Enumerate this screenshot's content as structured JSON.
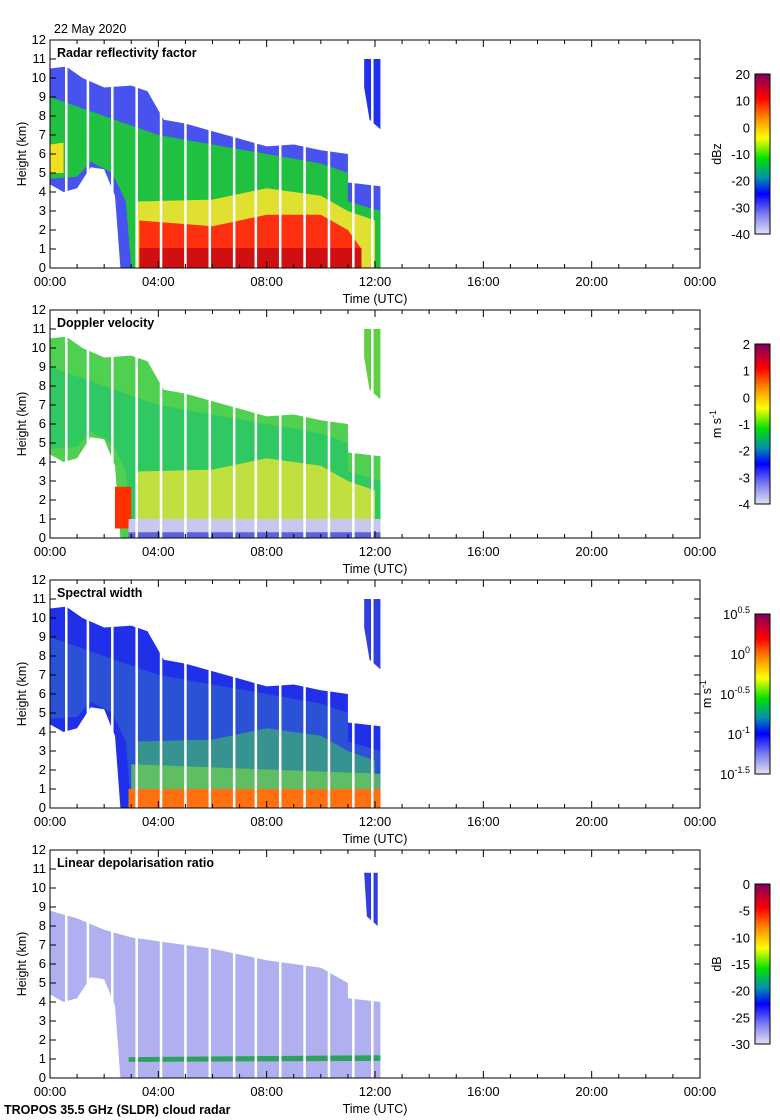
{
  "header": {
    "date": "22 May 2020"
  },
  "footer": {
    "instrument": "TROPOS 35.5 GHz (SLDR) cloud radar"
  },
  "chart_data": {
    "type": "heatmap",
    "xlabel": "Time (UTC)",
    "ylabel": "Height (km)",
    "xlim_hours": [
      0,
      24
    ],
    "ylim_km": [
      0,
      12
    ],
    "x_ticks": [
      "00:00",
      "04:00",
      "08:00",
      "12:00",
      "16:00",
      "20:00",
      "00:00"
    ],
    "y_ticks": [
      "0",
      "1",
      "2",
      "3",
      "4",
      "5",
      "6",
      "7",
      "8",
      "9",
      "10",
      "11",
      "12"
    ],
    "data_coverage_hours": [
      0,
      12.25
    ],
    "colormap": [
      "#d8d8f0",
      "#0000ff",
      "#00e000",
      "#ffff00",
      "#ff8000",
      "#ff0000",
      "#800060"
    ],
    "panels": [
      {
        "title": "Radar reflectivity factor",
        "unit": "dBz",
        "unit_exp": "",
        "cbar_range": [
          -40,
          20
        ],
        "cbar_ticks": [
          {
            "base": "20",
            "exp": ""
          },
          {
            "base": "10",
            "exp": ""
          },
          {
            "base": "0",
            "exp": ""
          },
          {
            "base": "-10",
            "exp": ""
          },
          {
            "base": "-20",
            "exp": ""
          },
          {
            "base": "-30",
            "exp": ""
          },
          {
            "base": "-40",
            "exp": ""
          }
        ]
      },
      {
        "title": "Doppler velocity",
        "unit": "m s",
        "unit_exp": "-1",
        "cbar_range": [
          -4,
          2
        ],
        "cbar_ticks": [
          {
            "base": "2",
            "exp": ""
          },
          {
            "base": "1",
            "exp": ""
          },
          {
            "base": "0",
            "exp": ""
          },
          {
            "base": "-1",
            "exp": ""
          },
          {
            "base": "-2",
            "exp": ""
          },
          {
            "base": "-3",
            "exp": ""
          },
          {
            "base": "-4",
            "exp": ""
          }
        ]
      },
      {
        "title": "Spectral width",
        "unit": "m s",
        "unit_exp": "-1",
        "cbar_range": [
          -1.5,
          0.5
        ],
        "cbar_ticks": [
          {
            "base": "10",
            "exp": "0.5"
          },
          {
            "base": "10",
            "exp": "0"
          },
          {
            "base": "10",
            "exp": "-0.5"
          },
          {
            "base": "10",
            "exp": "-1"
          },
          {
            "base": "10",
            "exp": "-1.5"
          }
        ]
      },
      {
        "title": "Linear depolarisation ratio",
        "unit": "dB",
        "unit_exp": "",
        "cbar_range": [
          -30,
          0
        ],
        "cbar_ticks": [
          {
            "base": "0",
            "exp": ""
          },
          {
            "base": "-5",
            "exp": ""
          },
          {
            "base": "-10",
            "exp": ""
          },
          {
            "base": "-15",
            "exp": ""
          },
          {
            "base": "-20",
            "exp": ""
          },
          {
            "base": "-25",
            "exp": ""
          },
          {
            "base": "-30",
            "exp": ""
          }
        ]
      }
    ]
  }
}
